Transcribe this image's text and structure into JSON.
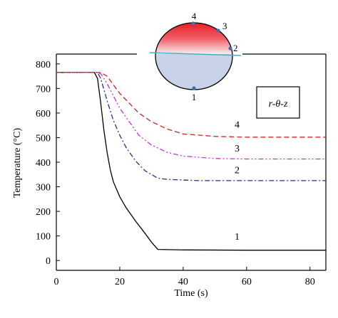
{
  "chart_data": {
    "type": "line",
    "xlabel": "Time (s)",
    "ylabel": "Temperature (°C)",
    "xlim": [
      0,
      85
    ],
    "ylim": [
      -40,
      840
    ],
    "xticks": [
      0,
      20,
      40,
      60,
      80
    ],
    "yticks": [
      0,
      100,
      200,
      300,
      400,
      500,
      600,
      700,
      800
    ],
    "series": [
      {
        "name": "1",
        "color": "#000000",
        "dash": "solid",
        "points": [
          [
            0,
            765
          ],
          [
            12,
            765
          ],
          [
            13,
            740
          ],
          [
            14,
            640
          ],
          [
            15,
            530
          ],
          [
            16,
            440
          ],
          [
            17,
            370
          ],
          [
            18,
            320
          ],
          [
            20,
            260
          ],
          [
            22,
            215
          ],
          [
            25,
            160
          ],
          [
            28,
            110
          ],
          [
            30,
            75
          ],
          [
            32,
            45
          ],
          [
            40,
            43
          ],
          [
            60,
            42
          ],
          [
            85,
            42
          ]
        ]
      },
      {
        "name": "2",
        "color": "#2b2b9a",
        "dash": "dashdot",
        "points": [
          [
            0,
            765
          ],
          [
            13,
            765
          ],
          [
            14,
            740
          ],
          [
            16,
            650
          ],
          [
            18,
            570
          ],
          [
            20,
            510
          ],
          [
            22,
            460
          ],
          [
            25,
            405
          ],
          [
            28,
            365
          ],
          [
            32,
            335
          ],
          [
            35,
            330
          ],
          [
            45,
            325
          ],
          [
            60,
            325
          ],
          [
            85,
            325
          ]
        ]
      },
      {
        "name": "3",
        "color": "#cc33cc",
        "dash": "dashdotdot",
        "points": [
          [
            0,
            765
          ],
          [
            13,
            765
          ],
          [
            14,
            760
          ],
          [
            16,
            720
          ],
          [
            18,
            670
          ],
          [
            20,
            620
          ],
          [
            23,
            565
          ],
          [
            26,
            510
          ],
          [
            30,
            470
          ],
          [
            35,
            440
          ],
          [
            40,
            425
          ],
          [
            50,
            415
          ],
          [
            60,
            413
          ],
          [
            85,
            413
          ]
        ]
      },
      {
        "name": "4",
        "color": "#cc2222",
        "dash": "dashed",
        "points": [
          [
            0,
            765
          ],
          [
            14,
            765
          ],
          [
            16,
            750
          ],
          [
            18,
            715
          ],
          [
            20,
            680
          ],
          [
            23,
            640
          ],
          [
            26,
            600
          ],
          [
            30,
            565
          ],
          [
            35,
            535
          ],
          [
            40,
            515
          ],
          [
            50,
            505
          ],
          [
            60,
            502
          ],
          [
            85,
            502
          ]
        ]
      }
    ],
    "curve_labels": [
      {
        "text": "1",
        "x": 57,
        "y": 85
      },
      {
        "text": "2",
        "x": 57,
        "y": 355
      },
      {
        "text": "3",
        "x": 57,
        "y": 444
      },
      {
        "text": "4",
        "x": 57,
        "y": 540
      }
    ]
  },
  "inset": {
    "label": "r-θ-z",
    "point_labels": [
      "1",
      "2",
      "3",
      "4"
    ],
    "colors": {
      "hot": "#e8101a",
      "cool": "#c8d3ea",
      "line": "#3fb5b8",
      "point": "#3a6fb0"
    }
  }
}
